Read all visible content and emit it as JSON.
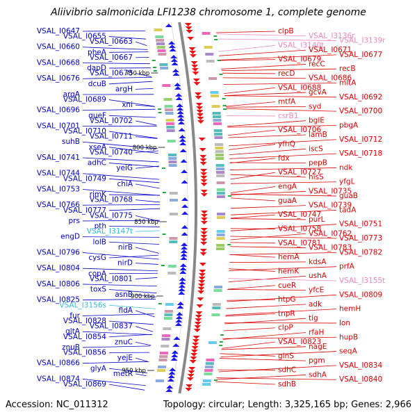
{
  "title": "Aliivibrio salmonicida LFI1238 chromosome 1, complete genome",
  "footer": {
    "accession": "Accession: NC_011312",
    "summary": "Topology: circular; Length: 3,325,165 bp; Genes: 2,966"
  },
  "colors": {
    "left_label": "#0000cc",
    "left_rna": "#33bbdd",
    "right_label": "#dd0000",
    "right_rna": "#ee88bb",
    "backbone": "#888888"
  },
  "kbp_marks": [
    "750 kbp",
    "800 kbp",
    "850 kbp",
    "900 kbp",
    "950 kbp"
  ],
  "left_labels": [
    {
      "text": "VSAL_I0647",
      "rna": false
    },
    {
      "text": "VSAL_I0655",
      "rna": false
    },
    {
      "text": "VSAL_I0663",
      "rna": false
    },
    {
      "text": "VSAL_I0660",
      "rna": false
    },
    {
      "text": "pheA",
      "rna": false
    },
    {
      "text": "VSAL_I0667",
      "rna": false
    },
    {
      "text": "VSAL_I0668",
      "rna": false
    },
    {
      "text": "dapD",
      "rna": false
    },
    {
      "text": "VSAL_I0678",
      "rna": false
    },
    {
      "text": "VSAL_I0676",
      "rna": false
    },
    {
      "text": "dcuB",
      "rna": false
    },
    {
      "text": "argH",
      "rna": false
    },
    {
      "text": "argA",
      "rna": false
    },
    {
      "text": "VSAL_I0689",
      "rna": false
    },
    {
      "text": "xni",
      "rna": false
    },
    {
      "text": "VSAL_I0696",
      "rna": false
    },
    {
      "text": "queF",
      "rna": false
    },
    {
      "text": "VSAL_I0702",
      "rna": false
    },
    {
      "text": "VSAL_I0701",
      "rna": false
    },
    {
      "text": "VSAL_I0710",
      "rna": false
    },
    {
      "text": "VSAL_I0711",
      "rna": false
    },
    {
      "text": "suhB",
      "rna": false
    },
    {
      "text": "xseA",
      "rna": false
    },
    {
      "text": "VSAL_I0740",
      "rna": false
    },
    {
      "text": "VSAL_I0741",
      "rna": false
    },
    {
      "text": "adhC",
      "rna": false
    },
    {
      "text": "yeiG",
      "rna": false
    },
    {
      "text": "VSAL_I0744",
      "rna": false
    },
    {
      "text": "VSAL_I0749",
      "rna": false
    },
    {
      "text": "chiA",
      "rna": false
    },
    {
      "text": "VSAL_I0753",
      "rna": false
    },
    {
      "text": "rimK",
      "rna": false
    },
    {
      "text": "VSAL_I0768",
      "rna": false
    },
    {
      "text": "VSAL_I0766",
      "rna": false
    },
    {
      "text": "VSAL_I0777",
      "rna": false
    },
    {
      "text": "VSAL_I0775",
      "rna": false
    },
    {
      "text": "prs",
      "rna": false
    },
    {
      "text": "pth",
      "rna": false
    },
    {
      "text": "VSAL_I3147t",
      "rna": true
    },
    {
      "text": "engD",
      "rna": false
    },
    {
      "text": "lolB",
      "rna": false
    },
    {
      "text": "nirB",
      "rna": false
    },
    {
      "text": "VSAL_I0796",
      "rna": false
    },
    {
      "text": "cysG",
      "rna": false
    },
    {
      "text": "nirD",
      "rna": false
    },
    {
      "text": "VSAL_I0804",
      "rna": false
    },
    {
      "text": "copA",
      "rna": false
    },
    {
      "text": "VSAL_I0801",
      "rna": false
    },
    {
      "text": "VSAL_I0806",
      "rna": false
    },
    {
      "text": "toxS",
      "rna": false
    },
    {
      "text": "asnB",
      "rna": false
    },
    {
      "text": "VSAL_I0825",
      "rna": false
    },
    {
      "text": "VSAL_I3156s",
      "rna": true
    },
    {
      "text": "fldA",
      "rna": false
    },
    {
      "text": "fur",
      "rna": false
    },
    {
      "text": "VSAL_I0828",
      "rna": false
    },
    {
      "text": "VSAL_I0837",
      "rna": false
    },
    {
      "text": "gltA",
      "rna": false
    },
    {
      "text": "VSAL_I0854",
      "rna": false
    },
    {
      "text": "znuC",
      "rna": false
    },
    {
      "text": "znuB",
      "rna": false
    },
    {
      "text": "VSAL_I0856",
      "rna": false
    },
    {
      "text": "yejE",
      "rna": false
    },
    {
      "text": "VSAL_I0866",
      "rna": false
    },
    {
      "text": "glyA",
      "rna": false
    },
    {
      "text": "metR",
      "rna": false
    },
    {
      "text": "VSAL_I0874",
      "rna": false
    },
    {
      "text": "VSAL_I0869",
      "rna": false
    }
  ],
  "right_labels": [
    {
      "text": "clpB",
      "rna": false
    },
    {
      "text": "VSAL_I3136r",
      "rna": true
    },
    {
      "text": "VSAL_I3139r",
      "rna": true
    },
    {
      "text": "VSAL_I3140t",
      "rna": true
    },
    {
      "text": "VSAL_I0671",
      "rna": false
    },
    {
      "text": "VSAL_I0677",
      "rna": false
    },
    {
      "text": "VSAL_I0679",
      "rna": false
    },
    {
      "text": "recC",
      "rna": false
    },
    {
      "text": "recB",
      "rna": false
    },
    {
      "text": "recD",
      "rna": false
    },
    {
      "text": "VSAL_I0686",
      "rna": false
    },
    {
      "text": "mltA",
      "rna": false
    },
    {
      "text": "VSAL_I0688",
      "rna": false
    },
    {
      "text": "gcvA",
      "rna": false
    },
    {
      "text": "VSAL_I0692",
      "rna": false
    },
    {
      "text": "mtfA",
      "rna": false
    },
    {
      "text": "syd",
      "rna": false
    },
    {
      "text": "VSAL_I0700",
      "rna": false
    },
    {
      "text": "csrB1",
      "rna": true
    },
    {
      "text": "bglE",
      "rna": false
    },
    {
      "text": "pbgA",
      "rna": false
    },
    {
      "text": "VSAL_I0706",
      "rna": false
    },
    {
      "text": "lamB",
      "rna": false
    },
    {
      "text": "VSAL_I0712",
      "rna": false
    },
    {
      "text": "yfhQ",
      "rna": false
    },
    {
      "text": "iscS",
      "rna": false
    },
    {
      "text": "VSAL_I0718",
      "rna": false
    },
    {
      "text": "fdx",
      "rna": false
    },
    {
      "text": "pepB",
      "rna": false
    },
    {
      "text": "ndk",
      "rna": false
    },
    {
      "text": "VSAL_I0727",
      "rna": false
    },
    {
      "text": "hisS",
      "rna": false
    },
    {
      "text": "yfgL",
      "rna": false
    },
    {
      "text": "engA",
      "rna": false
    },
    {
      "text": "VSAL_I0735",
      "rna": false
    },
    {
      "text": "guaB",
      "rna": false
    },
    {
      "text": "guaA",
      "rna": false
    },
    {
      "text": "VSAL_I0739",
      "rna": false
    },
    {
      "text": "tadA",
      "rna": false
    },
    {
      "text": "VSAL_I0747",
      "rna": false
    },
    {
      "text": "purL",
      "rna": false
    },
    {
      "text": "VSAL_I0751",
      "rna": false
    },
    {
      "text": "VSAL_I0758",
      "rna": false
    },
    {
      "text": "VSAL_I0762",
      "rna": false
    },
    {
      "text": "VSAL_I0773",
      "rna": false
    },
    {
      "text": "VSAL_I0781",
      "rna": false
    },
    {
      "text": "VSAL_I0783",
      "rna": false
    },
    {
      "text": "VSAL_I0782",
      "rna": false
    },
    {
      "text": "hemA",
      "rna": false
    },
    {
      "text": "kdsA",
      "rna": false
    },
    {
      "text": "prfA",
      "rna": false
    },
    {
      "text": "hemK",
      "rna": false
    },
    {
      "text": "ushA",
      "rna": false
    },
    {
      "text": "VSAL_I3155t",
      "rna": true
    },
    {
      "text": "cueR",
      "rna": false
    },
    {
      "text": "yfcE",
      "rna": false
    },
    {
      "text": "VSAL_I0809",
      "rna": false
    },
    {
      "text": "htpG",
      "rna": false
    },
    {
      "text": "adk",
      "rna": false
    },
    {
      "text": "hemH",
      "rna": false
    },
    {
      "text": "tnpR",
      "rna": false
    },
    {
      "text": "tig",
      "rna": false
    },
    {
      "text": "lon",
      "rna": false
    },
    {
      "text": "clpP",
      "rna": false
    },
    {
      "text": "rfaH",
      "rna": false
    },
    {
      "text": "hupB",
      "rna": false
    },
    {
      "text": "VSAL_I0823",
      "rna": false
    },
    {
      "text": "nagE",
      "rna": false
    },
    {
      "text": "seqA",
      "rna": false
    },
    {
      "text": "glnS",
      "rna": false
    },
    {
      "text": "pgm",
      "rna": false
    },
    {
      "text": "VSAL_I0834",
      "rna": false
    },
    {
      "text": "sdhC",
      "rna": false
    },
    {
      "text": "sdhA",
      "rna": false
    },
    {
      "text": "VSAL_I0840",
      "rna": false
    },
    {
      "text": "sdhB",
      "rna": false
    }
  ]
}
